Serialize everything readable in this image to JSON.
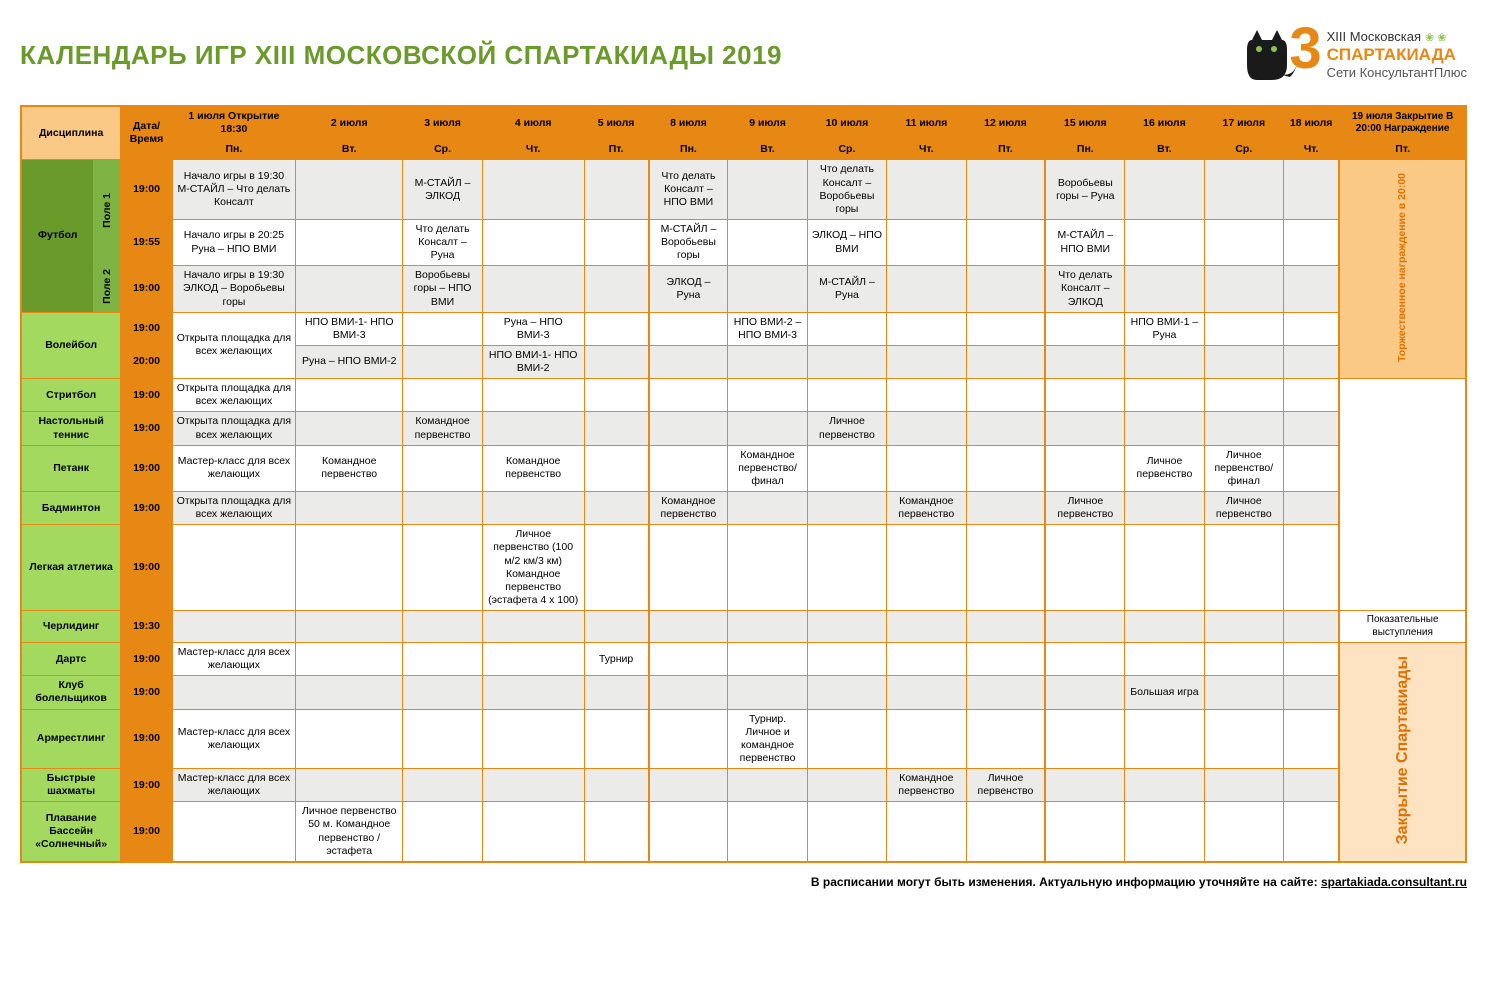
{
  "title": "КАЛЕНДАРЬ ИГР XIII МОСКОВСКОЙ СПАРТАКИАДЫ 2019",
  "logo": {
    "line1": "XIII Московская",
    "line2": "СПАРТАКИАДА",
    "line3": "Сети КонсультантПлюс",
    "number": "3"
  },
  "colors": {
    "title_green": "#6a9b2a",
    "orange_header": "#e88814",
    "orange_light": "#f5a742",
    "orange_pale": "#fbc986",
    "green_light": "#a3d95f",
    "green_dark": "#6a9b2a",
    "field_green": "#7cb342",
    "grey": "#ebebe9",
    "closing_pale": "#fde3c2"
  },
  "header": {
    "discipline": "Дисциплина",
    "date_time": "Дата/ Время",
    "dates": [
      "1 июля Открытие 18:30",
      "2 июля",
      "3 июля",
      "4 июля",
      "5 июля",
      "8 июля",
      "9 июля",
      "10 июля",
      "11 июля",
      "12 июля",
      "15 июля",
      "16 июля",
      "17 июля",
      "18 июля",
      "19 июля Закрытие В 20:00 Награждение"
    ],
    "days": [
      "Пн.",
      "Вт.",
      "Ср.",
      "Чт.",
      "Пт.",
      "Пн.",
      "Вт.",
      "Ср.",
      "Чт.",
      "Пт.",
      "Пн.",
      "Вт.",
      "Ср.",
      "Чт.",
      "Пт."
    ]
  },
  "vertical_labels": {
    "ceremony": "Торжественное награждение в 20:00",
    "closing": "Закрытие Спартакиады",
    "field1": "Поле 1",
    "field2": "Поле 2"
  },
  "schedule": {
    "football": {
      "name": "Футбол",
      "rows": [
        {
          "field": "field1",
          "time": "19:00",
          "cells": [
            "Начало игры в 19:30 М-СТАЙЛ – Что делать Консалт",
            "",
            "М-СТАЙЛ – ЭЛКОД",
            "",
            "",
            "Что делать Консалт – НПО ВМИ",
            "",
            "Что делать Консалт – Воробьевы горы",
            "",
            "",
            "Воробьевы горы – Руна",
            "",
            "",
            ""
          ]
        },
        {
          "field": "field1",
          "time": "19:55",
          "cells": [
            "Начало игры в 20:25 Руна – НПО ВМИ",
            "",
            "Что делать Консалт – Руна",
            "",
            "",
            "М-СТАЙЛ – Воробьевы горы",
            "",
            "ЭЛКОД – НПО ВМИ",
            "",
            "",
            "М-СТАЙЛ – НПО ВМИ",
            "",
            "",
            ""
          ]
        },
        {
          "field": "field2",
          "time": "19:00",
          "cells": [
            "Начало игры в 19:30 ЭЛКОД – Воробьевы горы",
            "",
            "Воробьевы горы – НПО ВМИ",
            "",
            "",
            "ЭЛКОД – Руна",
            "",
            "М-СТАЙЛ – Руна",
            "",
            "",
            "Что делать Консалт – ЭЛКОД",
            "",
            "",
            ""
          ]
        }
      ]
    },
    "volleyball": {
      "name": "Волейбол",
      "rows": [
        {
          "time": "19:00",
          "cells": [
            "Открыта площадка для всех желающих",
            "НПО ВМИ-1- НПО ВМИ-3",
            "",
            "Руна – НПО ВМИ-3",
            "",
            "",
            "НПО ВМИ-2 – НПО ВМИ-3",
            "",
            "",
            "",
            "",
            "НПО ВМИ-1 – Руна",
            "",
            ""
          ]
        },
        {
          "time": "20:00",
          "cells": [
            "",
            "Руна – НПО ВМИ-2",
            "",
            "НПО ВМИ-1- НПО ВМИ-2",
            "",
            "",
            "",
            "",
            "",
            "",
            "",
            "",
            "",
            ""
          ]
        }
      ],
      "merge_first": true
    },
    "streetball": {
      "name": "Стритбол",
      "time": "19:00",
      "cells": [
        "Открыта площадка для всех желающих",
        "",
        "",
        "",
        "",
        "",
        "",
        "",
        "",
        "",
        "",
        "",
        "",
        ""
      ]
    },
    "tabletennis": {
      "name": "Настольный теннис",
      "time": "19:00",
      "cells": [
        "Открыта площадка для всех желающих",
        "",
        "Командное первенство",
        "",
        "",
        "",
        "",
        "Личное первенство",
        "",
        "",
        "",
        "",
        "",
        ""
      ]
    },
    "petanque": {
      "name": "Петанк",
      "time": "19:00",
      "cells": [
        "Мастер-класс для всех желающих",
        "Командное первенство",
        "",
        "Командное первенство",
        "",
        "",
        "Командное первенство/ финал",
        "",
        "",
        "",
        "",
        "Личное первенство",
        "Личное первенство/ финал",
        ""
      ]
    },
    "badminton": {
      "name": "Бадминтон",
      "time": "19:00",
      "cells": [
        "Открыта площадка для всех желающих",
        "",
        "",
        "",
        "",
        "Командное первенство",
        "",
        "",
        "Командное первенство",
        "",
        "Личное первенство",
        "",
        "Личное первенство",
        ""
      ]
    },
    "athletics": {
      "name": "Легкая атлетика",
      "time": "19:00",
      "cells": [
        "",
        "",
        "",
        "Личное первенство (100 м/2 км/3 км) Командное первенство (эстафета 4 х 100)",
        "",
        "",
        "",
        "",
        "",
        "",
        "",
        "",
        "",
        ""
      ]
    },
    "cheerleading": {
      "name": "Черлидинг",
      "time": "19:30",
      "cells": [
        "",
        "",
        "",
        "",
        "",
        "",
        "",
        "",
        "",
        "",
        "",
        "",
        "",
        ""
      ],
      "last": "Показательные выступления"
    },
    "darts": {
      "name": "Дартс",
      "time": "19:00",
      "cells": [
        "Мастер-класс для всех желающих",
        "",
        "",
        "",
        "Турнир",
        "",
        "",
        "",
        "",
        "",
        "",
        "",
        "",
        ""
      ]
    },
    "fanclub": {
      "name": "Клуб болельщиков",
      "time": "19:00",
      "cells": [
        "",
        "",
        "",
        "",
        "",
        "",
        "",
        "",
        "",
        "",
        "",
        "Большая игра",
        "",
        ""
      ]
    },
    "armwrestling": {
      "name": "Армрестлинг",
      "time": "19:00",
      "cells": [
        "Мастер-класс для всех желающих",
        "",
        "",
        "",
        "",
        "",
        "Турнир. Личное и командное первенство",
        "",
        "",
        "",
        "",
        "",
        "",
        ""
      ]
    },
    "chess": {
      "name": "Быстрые шахматы",
      "time": "19:00",
      "cells": [
        "Мастер-класс для всех желающих",
        "",
        "",
        "",
        "",
        "",
        "",
        "",
        "Командное первенство",
        "Личное первенство",
        "",
        "",
        "",
        ""
      ]
    },
    "swimming": {
      "name": "Плавание Бассейн «Солнечный»",
      "time": "19:00",
      "cells": [
        "",
        "Личное первенство 50 м. Командное первенство / эстафета",
        "",
        "",
        "",
        "",
        "",
        "",
        "",
        "",
        "",
        "",
        "",
        ""
      ]
    }
  },
  "footer": "В расписании могут быть изменения. Актуальную информацию уточняйте на сайте:",
  "footer_link": "spartakiada.consultant.ru"
}
